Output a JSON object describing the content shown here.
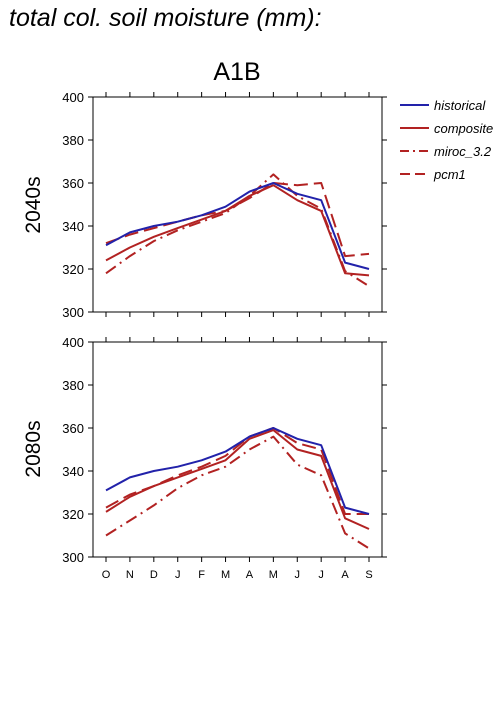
{
  "page_title": "total col. soil moisture (mm):",
  "colors": {
    "historical": "#2222aa",
    "future": "#b22222"
  },
  "chart_data": [
    {
      "type": "line",
      "title": "A1B",
      "ylabel": "2040s",
      "xlabel": "",
      "categories": [
        "O",
        "N",
        "D",
        "J",
        "F",
        "M",
        "A",
        "M",
        "J",
        "J",
        "A",
        "S"
      ],
      "ylim": [
        300,
        400
      ],
      "yticks": [
        300,
        320,
        340,
        360,
        380,
        400
      ],
      "grid": false,
      "legend_placement": "right",
      "series": [
        {
          "name": "historical",
          "style": "solid",
          "color": "#2222aa",
          "values": [
            331,
            337,
            340,
            342,
            345,
            349,
            356,
            360,
            355,
            352,
            323,
            320
          ]
        },
        {
          "name": "composite",
          "style": "solid",
          "color": "#b22222",
          "values": [
            324,
            330,
            335,
            339,
            343,
            347,
            354,
            359,
            352,
            347,
            318,
            317
          ]
        },
        {
          "name": "miroc_3.2",
          "style": "dashdot",
          "color": "#b22222",
          "values": [
            318,
            326,
            333,
            338,
            342,
            346,
            354,
            364,
            354,
            348,
            319,
            312
          ]
        },
        {
          "name": "pcm1",
          "style": "dashed",
          "color": "#b22222",
          "values": [
            332,
            336,
            339,
            342,
            345,
            347,
            353,
            360,
            359,
            360,
            326,
            327
          ]
        }
      ]
    },
    {
      "type": "line",
      "title": "",
      "ylabel": "2080s",
      "xlabel": "",
      "categories": [
        "O",
        "N",
        "D",
        "J",
        "F",
        "M",
        "A",
        "M",
        "J",
        "J",
        "A",
        "S"
      ],
      "ylim": [
        300,
        400
      ],
      "yticks": [
        300,
        320,
        340,
        360,
        380,
        400
      ],
      "grid": false,
      "series": [
        {
          "name": "historical",
          "style": "solid",
          "color": "#2222aa",
          "values": [
            331,
            337,
            340,
            342,
            345,
            349,
            356,
            360,
            355,
            352,
            323,
            320
          ]
        },
        {
          "name": "composite",
          "style": "solid",
          "color": "#b22222",
          "values": [
            321,
            328,
            333,
            337,
            341,
            345,
            355,
            359,
            350,
            347,
            318,
            313
          ]
        },
        {
          "name": "miroc_3.2",
          "style": "dashdot",
          "color": "#b22222",
          "values": [
            310,
            317,
            324,
            332,
            338,
            342,
            350,
            356,
            343,
            338,
            311,
            304
          ]
        },
        {
          "name": "pcm1",
          "style": "dashed",
          "color": "#b22222",
          "values": [
            323,
            329,
            333,
            338,
            342,
            347,
            356,
            360,
            353,
            350,
            320,
            320
          ]
        }
      ]
    }
  ]
}
